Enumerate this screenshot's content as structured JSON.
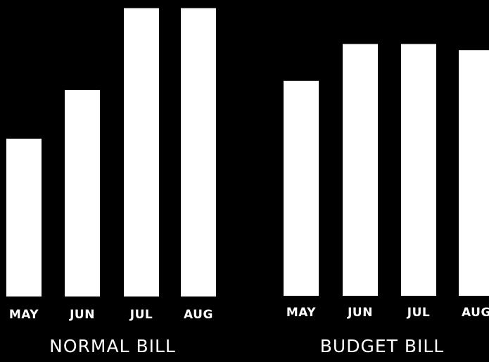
{
  "chart_data": [
    {
      "type": "bar",
      "title": "NORMAL BILL",
      "categories": [
        "MAY",
        "JUN",
        "JUL",
        "AUG"
      ],
      "values": [
        52,
        68,
        95,
        95
      ],
      "ylim": [
        0,
        100
      ],
      "grid": false,
      "bar_color": "#ffffff",
      "background": "#000000"
    },
    {
      "type": "bar",
      "title": "BUDGET BILL",
      "categories": [
        "MAY",
        "JUN",
        "JUL",
        "AUG"
      ],
      "values": [
        70,
        82,
        82,
        80
      ],
      "ylim": [
        0,
        100
      ],
      "grid": false,
      "bar_color": "#ffffff",
      "background": "#000000"
    }
  ]
}
